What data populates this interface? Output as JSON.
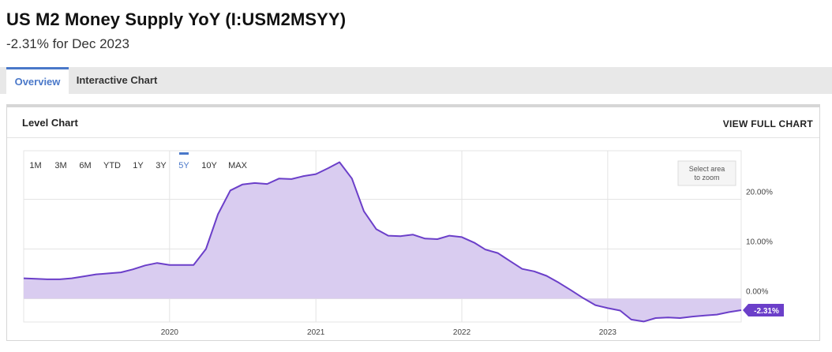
{
  "header": {
    "title": "US M2 Money Supply YoY (I:USM2MSYY)",
    "subtitle": "-2.31% for Dec 2023"
  },
  "tabs": [
    {
      "label": "Overview",
      "active": true
    },
    {
      "label": "Interactive Chart",
      "active": false
    }
  ],
  "panel": {
    "title": "Level Chart",
    "view_full_label": "VIEW FULL CHART"
  },
  "range_buttons": [
    {
      "label": "1M",
      "active": false
    },
    {
      "label": "3M",
      "active": false
    },
    {
      "label": "6M",
      "active": false
    },
    {
      "label": "YTD",
      "active": false
    },
    {
      "label": "1Y",
      "active": false
    },
    {
      "label": "3Y",
      "active": false
    },
    {
      "label": "5Y",
      "active": true
    },
    {
      "label": "10Y",
      "active": false
    },
    {
      "label": "MAX",
      "active": false
    }
  ],
  "zoom_hint": [
    "Select area",
    "to zoom"
  ],
  "colors": {
    "accent_blue": "#4a78c9",
    "series_line": "#6b3fc9",
    "series_fill": "#d9ccf0",
    "tab_bar_bg": "#e8e8e8"
  },
  "chart_data": {
    "type": "area",
    "x_tick_labels": [
      "2020",
      "2021",
      "2022",
      "2023"
    ],
    "y_tick_labels": [
      "20.00%",
      "10.00%",
      "0.00%"
    ],
    "y_ticks": [
      20,
      10,
      0
    ],
    "ylim": [
      -4.7,
      29.8
    ],
    "xlim": [
      "2019-01-01",
      "2023-12-01"
    ],
    "grid": true,
    "last_value_label": "-2.31%",
    "series": [
      {
        "x": [
          "2019-01",
          "2019-02",
          "2019-03",
          "2019-04",
          "2019-05",
          "2019-06",
          "2019-07",
          "2019-08",
          "2019-09",
          "2019-10",
          "2019-11",
          "2019-12",
          "2020-01",
          "2020-02",
          "2020-03",
          "2020-04",
          "2020-05",
          "2020-06",
          "2020-07",
          "2020-08",
          "2020-09",
          "2020-10",
          "2020-11",
          "2020-12",
          "2021-01",
          "2021-02",
          "2021-03",
          "2021-04",
          "2021-05",
          "2021-06",
          "2021-07",
          "2021-08",
          "2021-09",
          "2021-10",
          "2021-11",
          "2021-12",
          "2022-01",
          "2022-02",
          "2022-03",
          "2022-04",
          "2022-05",
          "2022-06",
          "2022-07",
          "2022-08",
          "2022-09",
          "2022-10",
          "2022-11",
          "2022-12",
          "2023-01",
          "2023-02",
          "2023-03",
          "2023-04",
          "2023-05",
          "2023-06",
          "2023-07",
          "2023-08",
          "2023-09",
          "2023-10",
          "2023-11",
          "2023-12"
        ],
        "y": [
          4.1,
          4.0,
          3.9,
          3.9,
          4.1,
          4.5,
          4.9,
          5.1,
          5.3,
          5.9,
          6.7,
          7.2,
          6.8,
          6.8,
          6.8,
          10.0,
          17.0,
          21.8,
          23.0,
          23.3,
          23.1,
          24.2,
          24.1,
          24.7,
          25.1,
          26.3,
          27.5,
          24.2,
          17.6,
          14.0,
          12.7,
          12.6,
          12.9,
          12.1,
          12.0,
          12.7,
          12.4,
          11.3,
          9.9,
          9.2,
          7.6,
          6.0,
          5.5,
          4.6,
          3.2,
          1.7,
          0.1,
          -1.3,
          -1.9,
          -2.4,
          -4.2,
          -4.6,
          -3.9,
          -3.8,
          -3.9,
          -3.6,
          -3.4,
          -3.2,
          -2.7,
          -2.31
        ]
      }
    ]
  }
}
